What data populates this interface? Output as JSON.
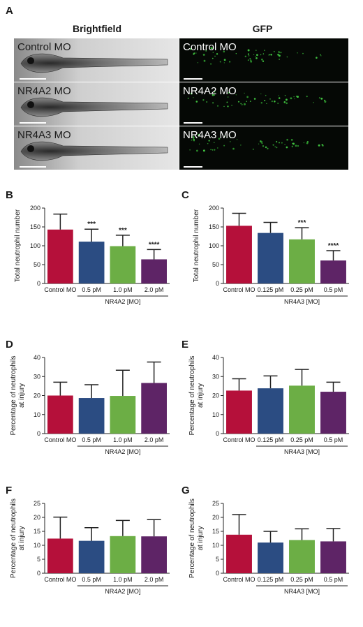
{
  "panel_a": {
    "letter": "A",
    "columns": [
      "Brightfield",
      "GFP"
    ],
    "rows": [
      "Control MO",
      "NR4A2 MO",
      "NR4A3 MO"
    ]
  },
  "colors": {
    "control": "#b5103a",
    "dose1": "#2b4c82",
    "dose2": "#6cae45",
    "dose3": "#5e2466"
  },
  "chart_data": [
    {
      "panel": "B",
      "type": "bar",
      "categories": [
        "Control MO",
        "0.5 pM",
        "1.0 pM",
        "2.0 pM"
      ],
      "values": [
        143,
        111,
        99,
        64
      ],
      "errors": [
        41,
        33,
        29,
        26
      ],
      "significance": [
        "",
        "***",
        "***",
        "****"
      ],
      "ylabel": "Total neutrophil number",
      "group_label": "NR4A2 [MO]",
      "ylim": [
        0,
        200
      ],
      "yticks": [
        0,
        50,
        100,
        150,
        200
      ]
    },
    {
      "panel": "C",
      "type": "bar",
      "categories": [
        "Control MO",
        "0.125 pM",
        "0.25 pM",
        "0.5 pM"
      ],
      "values": [
        153,
        134,
        117,
        61
      ],
      "errors": [
        33,
        28,
        31,
        26
      ],
      "significance": [
        "",
        "",
        "***",
        "****"
      ],
      "ylabel": "Total neutrophil number",
      "group_label": "NR4A3 [MO]",
      "ylim": [
        0,
        200
      ],
      "yticks": [
        0,
        50,
        100,
        150,
        200
      ]
    },
    {
      "panel": "D",
      "type": "bar",
      "categories": [
        "Control MO",
        "0.5 pM",
        "1.0 pM",
        "2.0 pM"
      ],
      "values": [
        20,
        18.7,
        19.8,
        26.6
      ],
      "errors": [
        7,
        7,
        13.5,
        11
      ],
      "significance": [
        "",
        "",
        "",
        ""
      ],
      "ylabel": "Percentage of neutrophils at injury",
      "group_label": "NR4A2 [MO]",
      "ylim": [
        0,
        40
      ],
      "yticks": [
        0,
        10,
        20,
        30,
        40
      ]
    },
    {
      "panel": "E",
      "type": "bar",
      "categories": [
        "Control MO",
        "0.125 pM",
        "0.25 pM",
        "0.5 pM"
      ],
      "values": [
        22.6,
        23.8,
        25.2,
        22
      ],
      "errors": [
        6.2,
        6.5,
        8.5,
        5
      ],
      "significance": [
        "",
        "",
        "",
        ""
      ],
      "ylabel": "Percentage of neutrophils at injury",
      "group_label": "NR4A3 [MO]",
      "ylim": [
        0,
        40
      ],
      "yticks": [
        0,
        10,
        20,
        30,
        40
      ]
    },
    {
      "panel": "F",
      "type": "bar",
      "categories": [
        "Control MO",
        "0.5 pM",
        "1.0 pM",
        "2.0 pM"
      ],
      "values": [
        12.4,
        11.6,
        13.3,
        13.2
      ],
      "errors": [
        7.7,
        4.7,
        5.6,
        6
      ],
      "significance": [
        "",
        "",
        "",
        ""
      ],
      "ylabel": "Percentage of neutrophils at injury",
      "group_label": "NR4A2 [MO]",
      "ylim": [
        0,
        25
      ],
      "yticks": [
        0,
        5,
        10,
        15,
        20,
        25
      ]
    },
    {
      "panel": "G",
      "type": "bar",
      "categories": [
        "Control MO",
        "0.125 pM",
        "0.25 pM",
        "0.5 pM"
      ],
      "values": [
        13.8,
        11,
        11.9,
        11.4
      ],
      "errors": [
        7.2,
        4,
        4,
        4.6
      ],
      "significance": [
        "",
        "",
        "",
        ""
      ],
      "ylabel": "Percentage of neutrophils at injury",
      "group_label": "NR4A3 [MO]",
      "ylim": [
        0,
        25
      ],
      "yticks": [
        0,
        5,
        10,
        15,
        20,
        25
      ]
    }
  ]
}
